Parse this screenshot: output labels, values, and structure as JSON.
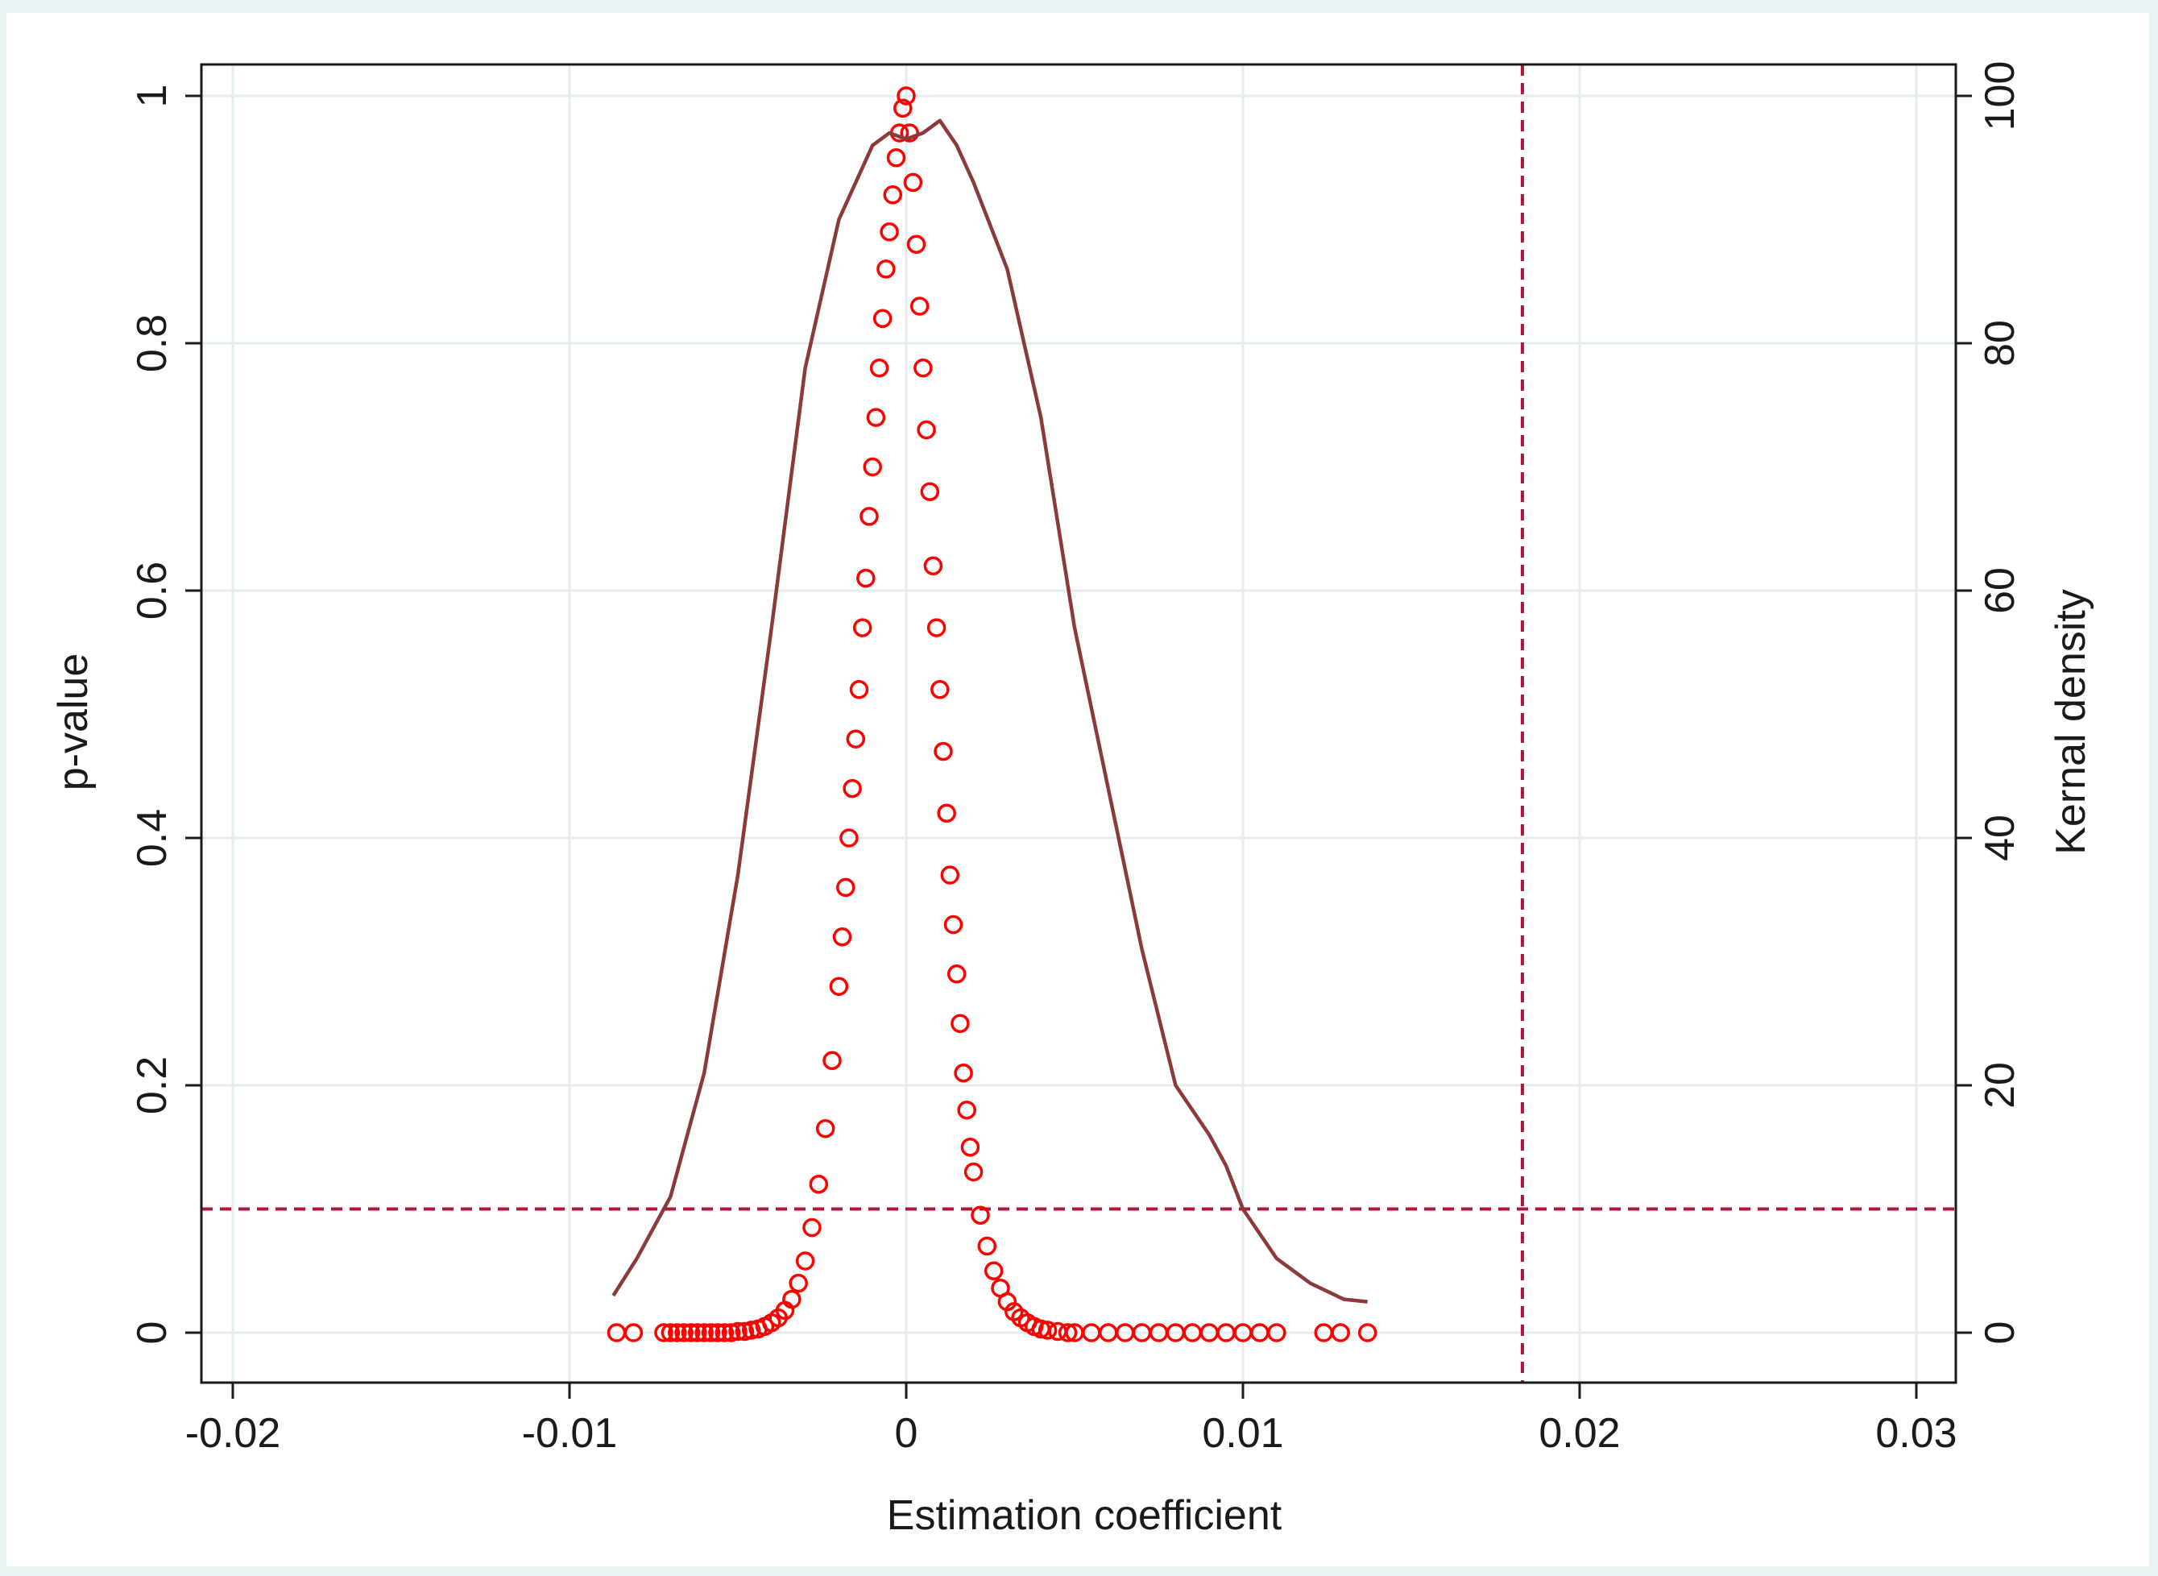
{
  "chart_data": {
    "type": "scatter",
    "title": "",
    "xlabel": "Estimation coefficient",
    "ylabel": "p-value",
    "y2label": "Kernal density",
    "xlim": [
      -0.02,
      0.03
    ],
    "ylim": [
      0,
      1
    ],
    "y2lim": [
      0,
      100
    ],
    "xticks": [
      "-0.02",
      "-0.01",
      "0",
      "0.01",
      "0.02",
      "0.03"
    ],
    "yticks": [
      "0",
      "0.2",
      "0.4",
      "0.6",
      "0.8",
      "1"
    ],
    "y2ticks": [
      "0",
      "20",
      "40",
      "60",
      "80",
      "100"
    ],
    "grid": true,
    "colors": {
      "points": "#ff0000",
      "density": "#8b3a3a",
      "reference": "#b0163c",
      "grid": "#e3ecee",
      "outer_background": "#eaf2f3"
    },
    "reference_lines": {
      "p_value_threshold": 0.1,
      "baseline_estimate": 0.0183
    },
    "kernel_density": {
      "axis": "right",
      "x": [
        -0.0087,
        -0.008,
        -0.007,
        -0.006,
        -0.005,
        -0.004,
        -0.003,
        -0.002,
        -0.001,
        -0.0005,
        0,
        0.0005,
        0.001,
        0.0015,
        0.002,
        0.003,
        0.004,
        0.005,
        0.006,
        0.007,
        0.008,
        0.009,
        0.0095,
        0.01,
        0.011,
        0.012,
        0.013,
        0.0137
      ],
      "y": [
        3,
        6,
        11,
        21,
        37,
        57,
        78,
        90,
        96,
        97,
        96.5,
        97,
        98,
        96,
        93,
        86,
        74,
        57,
        44,
        31,
        20,
        16,
        13.5,
        10,
        6,
        4,
        2.7,
        2.5
      ]
    },
    "series": [
      {
        "axis": "left",
        "x": [
          -0.0086,
          -0.0081,
          -0.0072,
          -0.007,
          -0.0068,
          -0.0066,
          -0.0064,
          -0.0062,
          -0.006,
          -0.0058,
          -0.0056,
          -0.0054,
          -0.0052,
          -0.005,
          -0.0048,
          -0.0046,
          -0.0044,
          -0.0042,
          -0.004,
          -0.0038,
          -0.0036,
          -0.0034,
          -0.0032,
          -0.003,
          -0.0028,
          -0.0026,
          -0.0024,
          -0.0022,
          -0.002,
          -0.0019,
          -0.0018,
          -0.0017,
          -0.0016,
          -0.0015,
          -0.0014,
          -0.0013,
          -0.0012,
          -0.0011,
          -0.001,
          -0.0009,
          -0.0008,
          -0.0007,
          -0.0006,
          -0.0005,
          -0.0004,
          -0.0003,
          -0.0002,
          -0.0001,
          0,
          0.0001,
          0.0002,
          0.0003,
          0.0004,
          0.0005,
          0.0006,
          0.0007,
          0.0008,
          0.0009,
          0.001,
          0.0011,
          0.0012,
          0.0013,
          0.0014,
          0.0015,
          0.0016,
          0.0017,
          0.0018,
          0.0019,
          0.002,
          0.0022,
          0.0024,
          0.0026,
          0.0028,
          0.003,
          0.0032,
          0.0034,
          0.0036,
          0.0038,
          0.004,
          0.0042,
          0.0045,
          0.0048,
          0.005,
          0.0055,
          0.006,
          0.0065,
          0.007,
          0.0075,
          0.008,
          0.0085,
          0.009,
          0.0095,
          0.01,
          0.0105,
          0.011,
          0.0124,
          0.0129,
          0.0137
        ],
        "y": [
          0,
          0,
          0,
          0,
          0,
          0,
          0,
          0,
          0,
          0,
          0,
          0,
          0,
          0.001,
          0.001,
          0.002,
          0.003,
          0.005,
          0.008,
          0.012,
          0.018,
          0.027,
          0.04,
          0.058,
          0.085,
          0.12,
          0.165,
          0.22,
          0.28,
          0.32,
          0.36,
          0.4,
          0.44,
          0.48,
          0.52,
          0.57,
          0.61,
          0.66,
          0.7,
          0.74,
          0.78,
          0.82,
          0.86,
          0.89,
          0.92,
          0.95,
          0.97,
          0.99,
          1.0,
          0.97,
          0.93,
          0.88,
          0.83,
          0.78,
          0.73,
          0.68,
          0.62,
          0.57,
          0.52,
          0.47,
          0.42,
          0.37,
          0.33,
          0.29,
          0.25,
          0.21,
          0.18,
          0.15,
          0.13,
          0.095,
          0.07,
          0.05,
          0.036,
          0.025,
          0.017,
          0.012,
          0.008,
          0.005,
          0.003,
          0.002,
          0.001,
          0,
          0,
          0,
          0,
          0,
          0,
          0,
          0,
          0,
          0,
          0,
          0,
          0,
          0,
          0,
          0,
          0
        ]
      }
    ]
  }
}
